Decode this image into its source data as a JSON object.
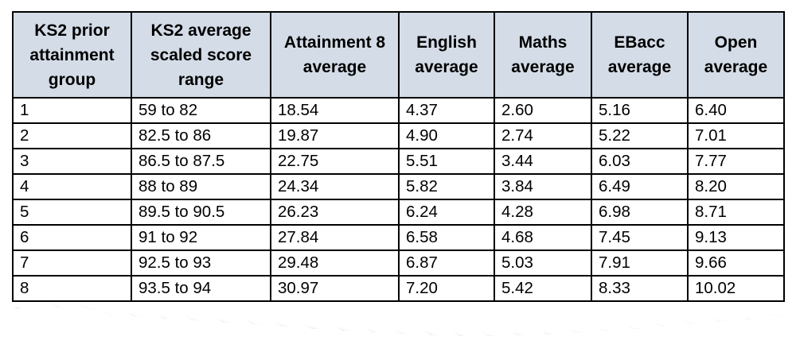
{
  "table": {
    "headers": [
      "KS2 prior attainment group",
      "KS2 average scaled score range",
      "Attainment 8 average",
      "English average",
      "Maths average",
      "EBacc average",
      "Open average"
    ],
    "rows": [
      [
        "1",
        "59 to 82",
        "18.54",
        "4.37",
        "2.60",
        "5.16",
        "6.40"
      ],
      [
        "2",
        "82.5 to 86",
        "19.87",
        "4.90",
        "2.74",
        "5.22",
        "7.01"
      ],
      [
        "3",
        "86.5 to 87.5",
        "22.75",
        "5.51",
        "3.44",
        "6.03",
        "7.77"
      ],
      [
        "4",
        "88 to 89",
        "24.34",
        "5.82",
        "3.84",
        "6.49",
        "8.20"
      ],
      [
        "5",
        "89.5 to 90.5",
        "26.23",
        "6.24",
        "4.28",
        "6.98",
        "8.71"
      ],
      [
        "6",
        "91 to 92",
        "27.84",
        "6.58",
        "4.68",
        "7.45",
        "9.13"
      ],
      [
        "7",
        "92.5 to 93",
        "29.48",
        "6.87",
        "5.03",
        "7.91",
        "9.66"
      ],
      [
        "8",
        "93.5 to 94",
        "30.97",
        "7.20",
        "5.42",
        "8.33",
        "10.02"
      ]
    ]
  },
  "colors": {
    "header_background": "#d4dce7",
    "border": "#000000",
    "paper": "#ffffff"
  }
}
